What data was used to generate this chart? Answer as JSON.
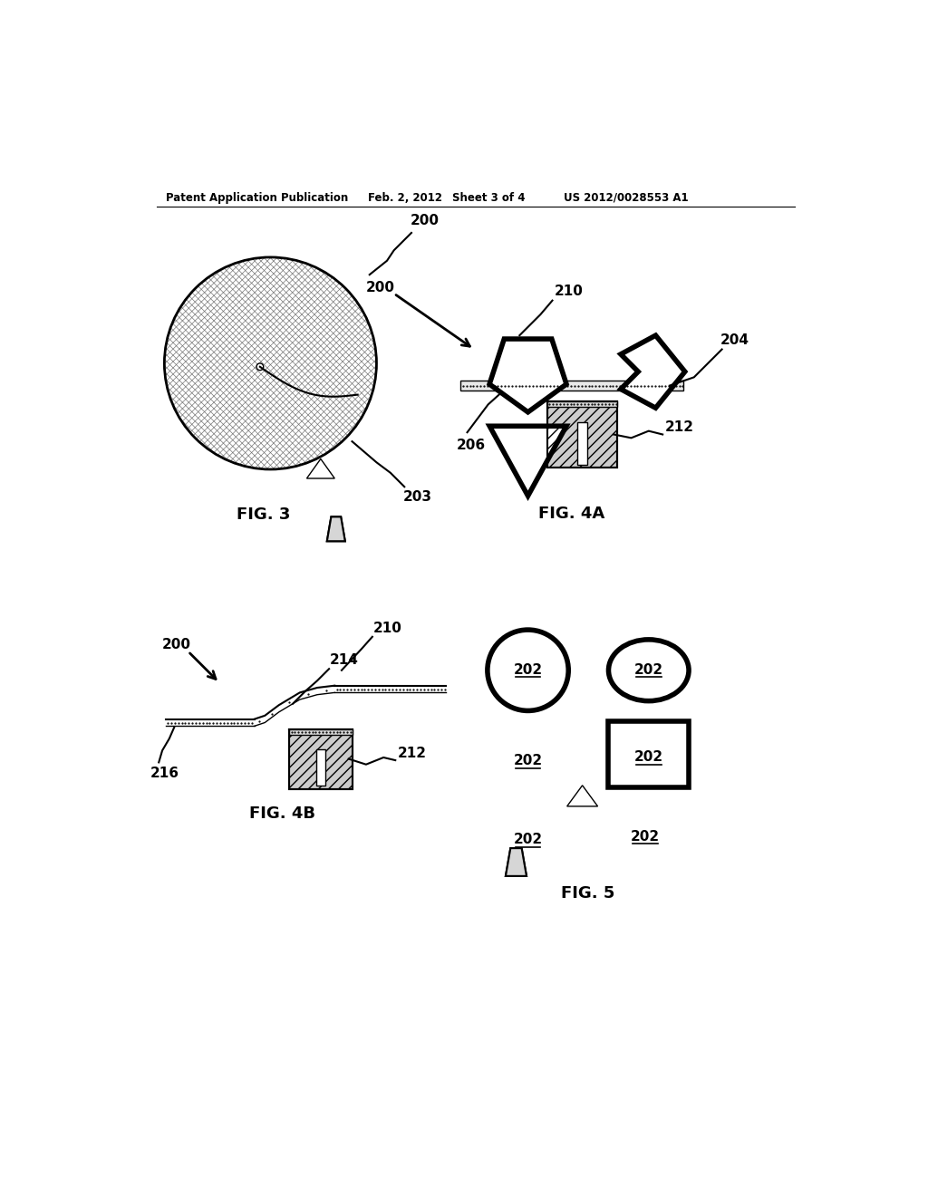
{
  "bg_color": "#ffffff",
  "header_text": "Patent Application Publication",
  "header_date": "Feb. 2, 2012",
  "header_sheet": "Sheet 3 of 4",
  "header_patent": "US 2012/0028553 A1",
  "fig3_label": "FIG. 3",
  "fig4a_label": "FIG. 4A",
  "fig4b_label": "FIG. 4B",
  "fig5_label": "FIG. 5"
}
